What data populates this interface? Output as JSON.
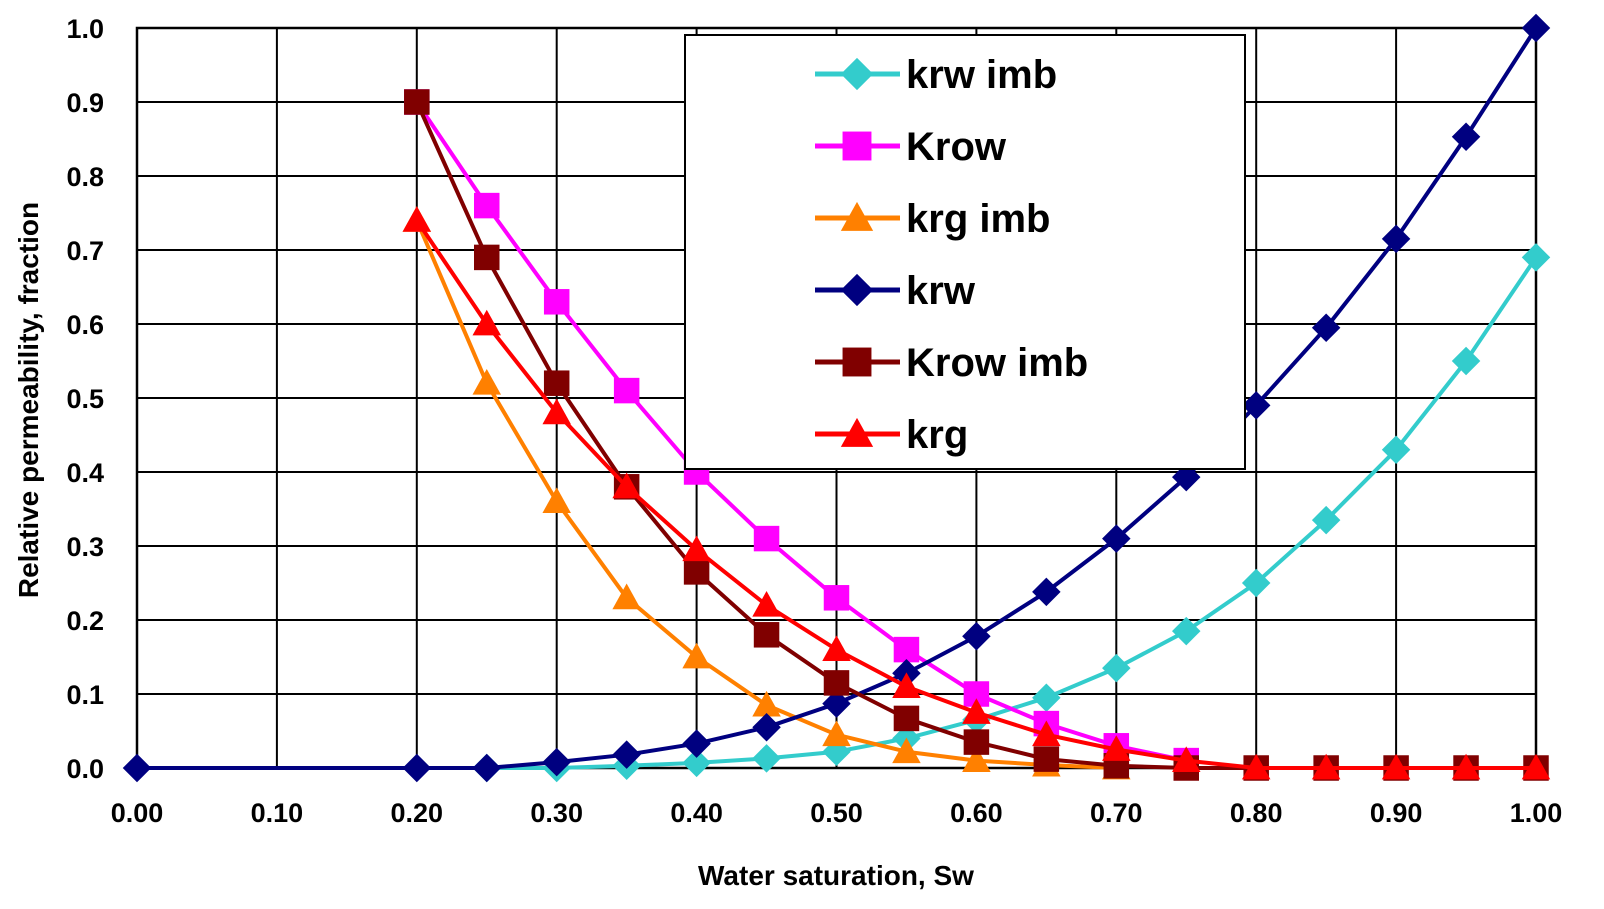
{
  "chart_data": {
    "type": "line",
    "title": "",
    "xlabel": "Water saturation, Sw",
    "ylabel": "Relative permeability, fraction",
    "xlim": [
      0.0,
      1.0
    ],
    "ylim": [
      0.0,
      1.0
    ],
    "x_ticks": [
      "0.00",
      "0.10",
      "0.20",
      "0.30",
      "0.40",
      "0.50",
      "0.60",
      "0.70",
      "0.80",
      "0.90",
      "1.00"
    ],
    "y_ticks": [
      "0.0",
      "0.1",
      "0.2",
      "0.3",
      "0.4",
      "0.5",
      "0.6",
      "0.7",
      "0.8",
      "0.9",
      "1.0"
    ],
    "grid": true,
    "legend_position": "top-center",
    "series": [
      {
        "name": "krw imb",
        "color": "#33CCCC",
        "marker": "diamond",
        "points": [
          [
            0.25,
            0.0
          ],
          [
            0.3,
            0.0
          ],
          [
            0.35,
            0.003
          ],
          [
            0.4,
            0.007
          ],
          [
            0.45,
            0.013
          ],
          [
            0.5,
            0.022
          ],
          [
            0.55,
            0.04
          ],
          [
            0.6,
            0.065
          ],
          [
            0.65,
            0.095
          ],
          [
            0.7,
            0.135
          ],
          [
            0.75,
            0.185
          ],
          [
            0.8,
            0.25
          ],
          [
            0.85,
            0.335
          ],
          [
            0.9,
            0.43
          ],
          [
            0.95,
            0.55
          ],
          [
            1.0,
            0.69
          ]
        ]
      },
      {
        "name": "Krow",
        "color": "#FF00FF",
        "marker": "square",
        "points": [
          [
            0.2,
            0.9
          ],
          [
            0.25,
            0.76
          ],
          [
            0.3,
            0.63
          ],
          [
            0.35,
            0.51
          ],
          [
            0.4,
            0.4
          ],
          [
            0.45,
            0.31
          ],
          [
            0.5,
            0.23
          ],
          [
            0.55,
            0.16
          ],
          [
            0.6,
            0.1
          ],
          [
            0.65,
            0.06
          ],
          [
            0.7,
            0.03
          ],
          [
            0.75,
            0.01
          ]
        ]
      },
      {
        "name": "krg imb",
        "color": "#FF8000",
        "marker": "triangle",
        "points": [
          [
            0.2,
            0.74
          ],
          [
            0.25,
            0.52
          ],
          [
            0.3,
            0.36
          ],
          [
            0.35,
            0.23
          ],
          [
            0.4,
            0.15
          ],
          [
            0.45,
            0.085
          ],
          [
            0.5,
            0.045
          ],
          [
            0.55,
            0.022
          ],
          [
            0.6,
            0.01
          ],
          [
            0.65,
            0.004
          ],
          [
            0.7,
            0.0
          ]
        ]
      },
      {
        "name": "krw",
        "color": "#000080",
        "marker": "diamond",
        "points": [
          [
            0.0,
            0.0
          ],
          [
            0.2,
            0.0
          ],
          [
            0.25,
            0.0
          ],
          [
            0.3,
            0.008
          ],
          [
            0.35,
            0.018
          ],
          [
            0.4,
            0.033
          ],
          [
            0.45,
            0.055
          ],
          [
            0.5,
            0.087
          ],
          [
            0.55,
            0.128
          ],
          [
            0.6,
            0.178
          ],
          [
            0.65,
            0.238
          ],
          [
            0.7,
            0.31
          ],
          [
            0.75,
            0.393
          ],
          [
            0.8,
            0.49
          ],
          [
            0.85,
            0.595
          ],
          [
            0.9,
            0.715
          ],
          [
            0.95,
            0.853
          ],
          [
            1.0,
            1.0
          ]
        ]
      },
      {
        "name": "Krow imb",
        "color": "#800000",
        "marker": "square",
        "points": [
          [
            0.2,
            0.9
          ],
          [
            0.25,
            0.69
          ],
          [
            0.3,
            0.52
          ],
          [
            0.35,
            0.38
          ],
          [
            0.4,
            0.265
          ],
          [
            0.45,
            0.18
          ],
          [
            0.5,
            0.115
          ],
          [
            0.55,
            0.067
          ],
          [
            0.6,
            0.035
          ],
          [
            0.65,
            0.012
          ],
          [
            0.7,
            0.003
          ],
          [
            0.75,
            0.0
          ],
          [
            0.8,
            0.0
          ],
          [
            0.85,
            0.0
          ],
          [
            0.9,
            0.0
          ],
          [
            0.95,
            0.0
          ],
          [
            1.0,
            0.0
          ]
        ]
      },
      {
        "name": "krg",
        "color": "#FF0000",
        "marker": "triangle",
        "points": [
          [
            0.2,
            0.74
          ],
          [
            0.25,
            0.6
          ],
          [
            0.3,
            0.48
          ],
          [
            0.35,
            0.38
          ],
          [
            0.4,
            0.295
          ],
          [
            0.45,
            0.22
          ],
          [
            0.5,
            0.16
          ],
          [
            0.55,
            0.11
          ],
          [
            0.6,
            0.075
          ],
          [
            0.65,
            0.045
          ],
          [
            0.7,
            0.025
          ],
          [
            0.75,
            0.01
          ],
          [
            0.8,
            0.0
          ],
          [
            0.85,
            0.0
          ],
          [
            0.9,
            0.0
          ],
          [
            0.95,
            0.0
          ],
          [
            1.0,
            0.0
          ]
        ]
      }
    ]
  }
}
